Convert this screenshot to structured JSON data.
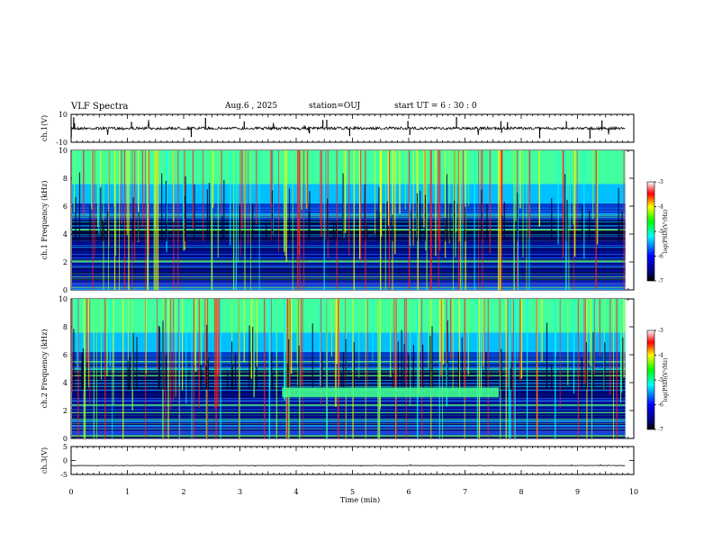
{
  "header": {
    "title": "VLF Spectra",
    "date": "Aug.6  , 2025",
    "station": "station=OUJ",
    "start": "start  UT  =   6  : 30 : 0"
  },
  "chart_data": {
    "type": "heatmap",
    "xlabel": "Time  (min)",
    "xlim": [
      0,
      10
    ],
    "xticks": [
      "0",
      "1",
      "2",
      "3",
      "4",
      "5",
      "6",
      "7",
      "8",
      "9",
      "10"
    ],
    "panels": [
      {
        "name": "ch1-waveform",
        "ylabel": "ch.1(V)",
        "ylim": [
          -10,
          10
        ],
        "yticks": [
          "10",
          "-10"
        ],
        "trace_level": 0
      },
      {
        "name": "ch1-spectrogram",
        "ylabel": "ch.1  Frequency  (kHz)",
        "ylim": [
          0,
          10
        ],
        "yticks": [
          "0",
          "2",
          "4",
          "6",
          "8",
          "10"
        ],
        "colorbar": {
          "label": "log(PSD)(V²/Hz)",
          "range": [
            -7,
            -3
          ],
          "ticks": [
            "-3",
            "-4",
            "-5",
            "-6",
            "-7"
          ]
        }
      },
      {
        "name": "ch2-spectrogram",
        "ylabel": "ch.2  Frequency  (kHz)",
        "ylim": [
          0,
          10
        ],
        "yticks": [
          "0",
          "2",
          "4",
          "6",
          "8",
          "10"
        ],
        "colorbar": {
          "label": "log(PSD)(V²/Hz)",
          "range": [
            -7,
            -3
          ],
          "ticks": [
            "-3",
            "-4",
            "-5",
            "-6",
            "-7"
          ]
        },
        "annotation": {
          "label": "narrowband signal ~3.3 kHz",
          "t_start": 3.75,
          "t_end": 7.6,
          "freq_khz": 3.3
        }
      },
      {
        "name": "ch3-waveform",
        "ylabel": "ch.3(V)",
        "ylim": [
          -5,
          5
        ],
        "yticks": [
          "5",
          "0",
          "-5"
        ],
        "trace_level": -1.8
      }
    ],
    "data_end_min": 9.85
  }
}
